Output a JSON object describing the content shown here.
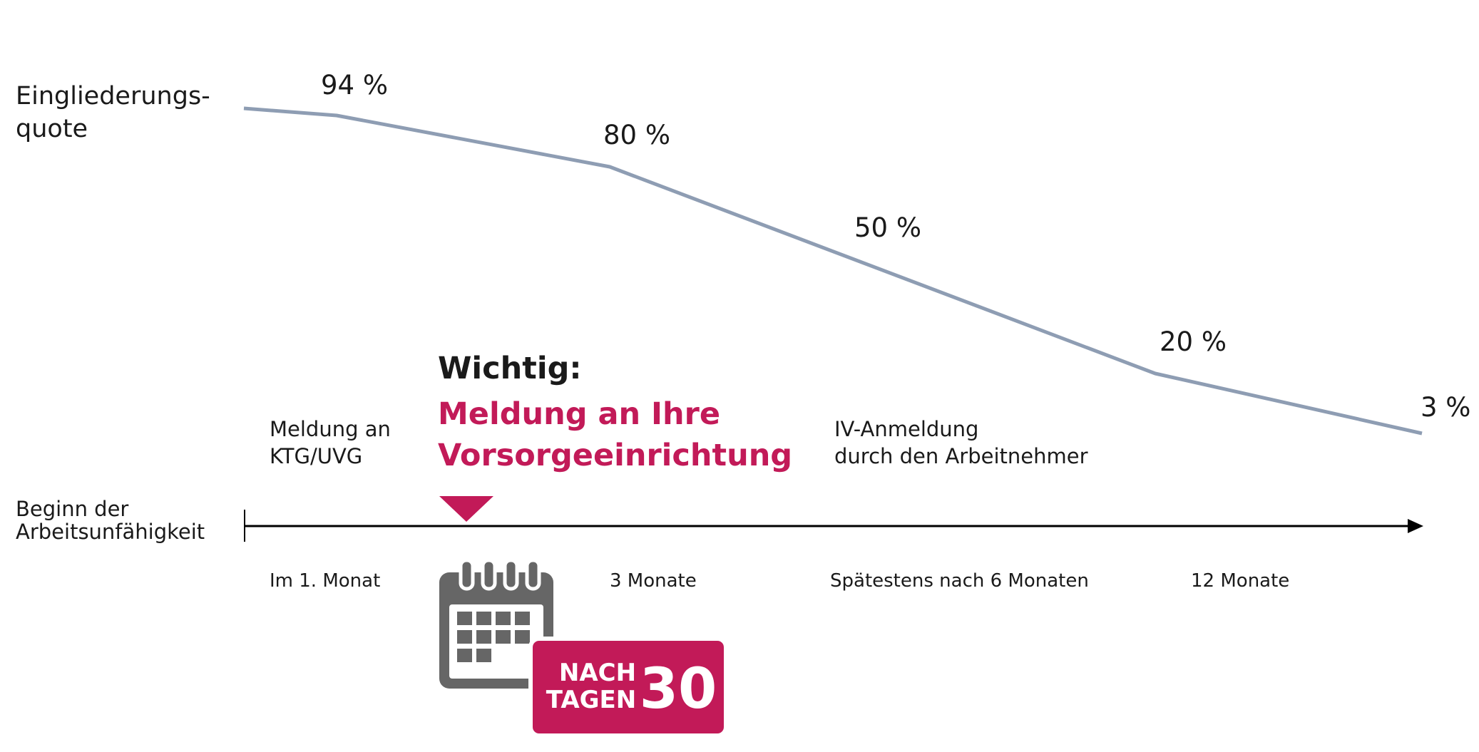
{
  "y_label_line1": "Eingliederungs-",
  "y_label_line2": "quote",
  "x_start_label_line1": "Beginn der",
  "x_start_label_line2": "Arbeitsunfähigkeit",
  "chart_data": {
    "type": "line",
    "x": [
      "Beginn der Arbeitsunfähigkeit",
      "Im 1. Monat",
      "3 Monate",
      "Spätestens nach 6 Monaten",
      "12 Monate",
      ""
    ],
    "series": [
      {
        "values": [
          null,
          94,
          80,
          50,
          20,
          3
        ],
        "labels": [
          "",
          "94 %",
          "80 %",
          "50 %",
          "20 %",
          "3 %"
        ]
      }
    ],
    "ylabel": "Eingliederungsquote",
    "line_color": "#8e9db3"
  },
  "points": [
    {
      "label": "94 %"
    },
    {
      "label": "80 %"
    },
    {
      "label": "50 %"
    },
    {
      "label": "20 %"
    },
    {
      "label": "3 %"
    }
  ],
  "annotations": {
    "meldung_line1": "Meldung an",
    "meldung_line2": "KTG/UVG",
    "important_title": "Wichtig:",
    "important_line1": "Meldung an Ihre",
    "important_line2": "Vorsorgeeinrichtung",
    "iv_line1": "IV-Anmeldung",
    "iv_line2": "durch den Arbeitnehmer"
  },
  "ticks": [
    "Im 1. Monat",
    "3 Monate",
    "Spätestens nach 6 Monaten",
    "12 Monate"
  ],
  "badge": {
    "line1": "NACH",
    "line2": "TAGEN",
    "number": "30"
  },
  "colors": {
    "accent": "#c21a58",
    "line": "#8e9db3",
    "calendar": "#666666",
    "axis": "#000000"
  },
  "icons": [
    "calendar-icon",
    "marker-triangle-icon"
  ]
}
